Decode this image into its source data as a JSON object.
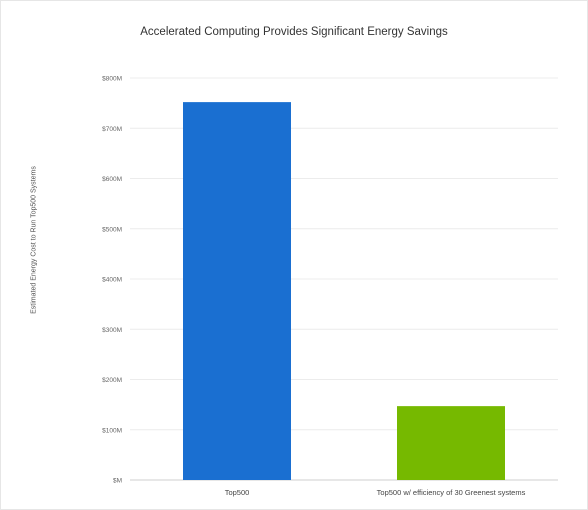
{
  "chart_data": {
    "type": "bar",
    "title": "Accelerated Computing Provides Significant Energy Savings",
    "xlabel": "",
    "ylabel": "Estimated Energy Cost to Run Top500 Systems",
    "categories": [
      "Top500",
      "Top500 w/ efficiency of 30 Greenest systems"
    ],
    "values": [
      752,
      147
    ],
    "unit": "$M",
    "bar_colors": [
      "#1a6fd1",
      "#76b900"
    ],
    "ylim": [
      0,
      800
    ],
    "yticks": [
      0,
      100,
      200,
      300,
      400,
      500,
      600,
      700,
      800
    ],
    "ytick_labels": [
      "$M",
      "$100M",
      "$200M",
      "$300M",
      "$400M",
      "$500M",
      "$600M",
      "$700M",
      "$800M"
    ],
    "grid": true,
    "legend": false
  }
}
